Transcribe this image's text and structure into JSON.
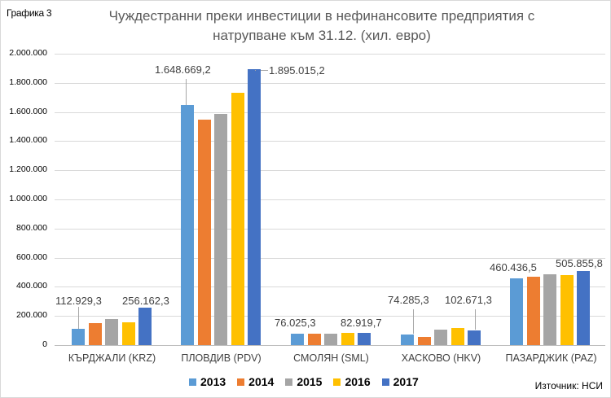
{
  "figure_label": "Графика 3",
  "title_line1": "Чуждестранни преки инвестиции в нефинансовите предприятия с",
  "title_line2": "натрупване към 31.12. (хил. евро)",
  "source": "Източник: НСИ",
  "y_ticks": [
    "2.000.000",
    "1.800.000",
    "1.600.000",
    "1.400.000",
    "1.200.000",
    "1.000.000",
    "800.000",
    "600.000",
    "400.000",
    "200.000",
    "0"
  ],
  "legend": [
    {
      "label": "2013",
      "color": "#5B9BD5"
    },
    {
      "label": "2014",
      "color": "#ED7D31"
    },
    {
      "label": "2015",
      "color": "#A5A5A5"
    },
    {
      "label": "2016",
      "color": "#FFC000"
    },
    {
      "label": "2017",
      "color": "#4472C4"
    }
  ],
  "categories": [
    "КЪРДЖАЛИ (KRZ)",
    "ПЛОВДИВ (PDV)",
    "СМОЛЯН (SML)",
    "ХАСКОВО (HKV)",
    "ПАЗАРДЖИК (PAZ)"
  ],
  "data_labels": {
    "krz_2013": "112.929,3",
    "krz_2017": "256.162,3",
    "pdv_2013": "1.648.669,2",
    "pdv_2017": "1.895.015,2",
    "sml_2013": "76.025,3",
    "sml_2017": "82.919,7",
    "hkv_2013": "74.285,3",
    "hkv_2017": "102.671,3",
    "paz_2013": "460.436,5",
    "paz_2017": "505.855,8"
  },
  "chart_data": {
    "type": "bar",
    "title": "Чуждестранни преки инвестиции в нефинансовите предприятия с натрупване към 31.12. (хил. евро)",
    "xlabel": "",
    "ylabel": "",
    "ylim": [
      0,
      2000000
    ],
    "grid": true,
    "legend_position": "bottom",
    "categories": [
      "КЪРДЖАЛИ (KRZ)",
      "ПЛОВДИВ (PDV)",
      "СМОЛЯН (SML)",
      "ХАСКОВО (HKV)",
      "ПАЗАРДЖИК (PAZ)"
    ],
    "series": [
      {
        "name": "2013",
        "color": "#5B9BD5",
        "values": [
          112929.3,
          1648669.2,
          76025.3,
          74285.3,
          460436.5
        ]
      },
      {
        "name": "2014",
        "color": "#ED7D31",
        "values": [
          150000,
          1545000,
          77000,
          57000,
          470000
        ]
      },
      {
        "name": "2015",
        "color": "#A5A5A5",
        "values": [
          178000,
          1585000,
          78000,
          107000,
          485000
        ]
      },
      {
        "name": "2016",
        "color": "#FFC000",
        "values": [
          156000,
          1730000,
          85000,
          118000,
          480000
        ]
      },
      {
        "name": "2017",
        "color": "#4472C4",
        "values": [
          256162.3,
          1895015.2,
          82919.7,
          102671.3,
          505855.8
        ]
      }
    ],
    "annotations": [
      "Графика 3",
      "Източник: НСИ"
    ]
  }
}
